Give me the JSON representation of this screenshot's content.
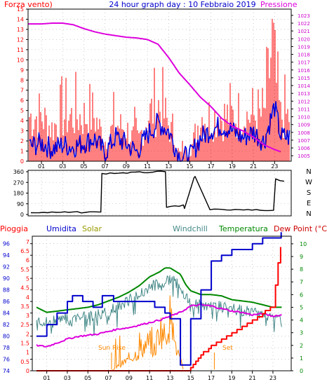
{
  "chart_data": [
    {
      "type": "line",
      "title": "24 hour graph day : 10 Febbraio 2019",
      "left_label": "Forza vento)",
      "right_label": "Pressione",
      "x_ticks": [
        "01",
        "03",
        "05",
        "07",
        "09",
        "11",
        "13",
        "15",
        "17",
        "19",
        "21",
        "23"
      ],
      "left_ticks": [
        "0",
        "1",
        "2",
        "3",
        "4",
        "5",
        "6",
        "7",
        "8",
        "9",
        "10",
        "11",
        "12",
        "13",
        "14",
        "15"
      ],
      "right_ticks": [
        "1005",
        "1006",
        "1007",
        "1008",
        "1009",
        "1010",
        "1011",
        "1012",
        "1013",
        "1014",
        "1015",
        "1016",
        "1017",
        "1018",
        "1019",
        "1020",
        "1021",
        "1022",
        "1023"
      ],
      "ylim_left": [
        0,
        15
      ],
      "ylim_right": [
        1004.3,
        1023.8
      ],
      "colors": {
        "gust": "#ff0000",
        "wind": "#0000dd",
        "pressure": "#dd00dd"
      },
      "series": [
        {
          "key": "pressure",
          "axis": "right",
          "x": [
            0,
            1,
            2,
            3,
            4,
            5,
            6,
            7,
            8,
            9,
            10,
            11,
            12,
            13,
            14,
            15,
            16,
            17,
            18,
            19,
            20,
            21,
            22,
            23,
            23.6
          ],
          "values": [
            1021.9,
            1021.9,
            1022,
            1022,
            1021.8,
            1021.3,
            1020.9,
            1020.6,
            1020.4,
            1020.2,
            1020.1,
            1019.9,
            1019.3,
            1017.6,
            1015.6,
            1014.1,
            1012.5,
            1011.3,
            1009.8,
            1008.8,
            1008.2,
            1007.4,
            1006.4,
            1005.8,
            1005.5
          ]
        },
        {
          "key": "wind",
          "axis": "left",
          "x": [
            0,
            1,
            2,
            3,
            4,
            5,
            6,
            7,
            8,
            9,
            10,
            11,
            12,
            13,
            14,
            15,
            16,
            17,
            18,
            19,
            20,
            21,
            22,
            23,
            23.6
          ],
          "values": [
            1.5,
            1.8,
            1.2,
            1.6,
            1.4,
            1.8,
            2.2,
            0.8,
            2.4,
            1.7,
            0.9,
            2.6,
            3.8,
            3,
            0.5,
            0.4,
            2.3,
            3.1,
            3.5,
            3,
            2.3,
            2.9,
            1.9,
            5.4,
            2.4
          ]
        },
        {
          "key": "gust",
          "axis": "left",
          "x": [
            0,
            1,
            2,
            3,
            4,
            5,
            6,
            7,
            8,
            9,
            10,
            11,
            12,
            13,
            14,
            15,
            16,
            17,
            18,
            19,
            20,
            21,
            22,
            22.8,
            23.3,
            23.6
          ],
          "values": [
            5.5,
            5.5,
            4,
            5.5,
            5.5,
            5.5,
            5.5,
            2.5,
            4.5,
            4,
            2,
            5.5,
            7,
            4.5,
            1,
            1,
            5.5,
            5.5,
            5.5,
            5.5,
            5.5,
            5.5,
            5.5,
            14.5,
            7.5,
            5.5
          ]
        }
      ]
    },
    {
      "type": "line",
      "y_ticks": [
        "0",
        "90",
        "180",
        "270",
        "360"
      ],
      "compass": [
        "N",
        "W",
        "S",
        "E",
        "N"
      ],
      "ylim": [
        0,
        360
      ],
      "color": "#000000",
      "series": [
        {
          "key": "direction",
          "x": [
            0,
            6.6,
            6.7,
            12.7,
            12.8,
            14.4,
            14.5,
            15.4,
            15.5,
            16.8,
            16.9,
            22.9,
            23.1,
            23.9
          ],
          "values": [
            15,
            20,
            345,
            360,
            60,
            80,
            50,
            310,
            320,
            60,
            40,
            35,
            300,
            280
          ]
        }
      ]
    },
    {
      "type": "line",
      "legend": [
        {
          "label": "Pioggia",
          "color": "#ff0000"
        },
        {
          "label": "Umidita",
          "color": "#0000cc"
        },
        {
          "label": "Solar",
          "color": "#999900"
        },
        {
          "label": "Windchill",
          "color": "#448888"
        },
        {
          "label": "Temperatura",
          "color": "#008800"
        },
        {
          "label": "Dew Point (°C)",
          "color": "#cc0000"
        }
      ],
      "humidity_ticks": [
        "74",
        "76",
        "78",
        "80",
        "82",
        "84",
        "86",
        "88",
        "90",
        "92",
        "94",
        "96"
      ],
      "rain_ticks": [
        "0",
        "0.5",
        "1",
        "1.5",
        "2",
        "2.5",
        "3",
        "3.5",
        "4",
        "4.5",
        "5",
        "5.5",
        "6",
        "6.5",
        "7"
      ],
      "temp_ticks": [
        "0",
        "1",
        "2",
        "3",
        "4",
        "5",
        "6",
        "7",
        "8",
        "9",
        "10"
      ],
      "annotations": [
        "Sun Rise",
        "Set"
      ],
      "ylim_humidity": [
        74,
        97.3
      ],
      "ylim_temp": [
        0,
        10.6
      ],
      "series": [
        {
          "key": "humidity",
          "axis": "humidity",
          "step": true,
          "x": [
            0,
            1,
            2,
            3,
            3.5,
            4.5,
            5.5,
            6.4,
            7.5,
            10.8,
            11.5,
            12.5,
            13,
            14,
            15,
            16,
            17,
            18,
            19,
            20,
            21,
            22,
            23,
            23.8
          ],
          "values": [
            80,
            82,
            84,
            86,
            87,
            86,
            85,
            87,
            86,
            86,
            85,
            84,
            83,
            75,
            83,
            88,
            93,
            94,
            95,
            95,
            96,
            97,
            97,
            98
          ]
        },
        {
          "key": "rain",
          "axis": "temp",
          "step": true,
          "x": [
            0,
            14.5,
            15,
            16,
            17,
            18,
            19,
            20,
            21,
            22,
            23,
            23.5,
            23.9
          ],
          "values": [
            0,
            0,
            0.2,
            1.2,
            1.9,
            2.4,
            2.9,
            3.4,
            3.9,
            4.5,
            5,
            8.5,
            10.4
          ]
        },
        {
          "key": "temperatura",
          "axis": "temp",
          "x": [
            0,
            1,
            2,
            3,
            4,
            5,
            6,
            7,
            8,
            9,
            10,
            11,
            12,
            12.5,
            13,
            14,
            14.5,
            15,
            16,
            17,
            18,
            19,
            20,
            21,
            22,
            23,
            23.9
          ],
          "values": [
            5,
            4.6,
            4.7,
            4.8,
            4.9,
            5,
            5.2,
            5.5,
            5.8,
            6.2,
            6.7,
            7.4,
            7.8,
            8.1,
            8.1,
            7.6,
            6.8,
            6.3,
            6,
            6,
            5.9,
            5.6,
            5.5,
            5.4,
            5.2,
            5,
            5
          ]
        },
        {
          "key": "windchill",
          "axis": "temp",
          "noisy": true,
          "x": [
            0,
            1,
            2,
            3,
            4,
            5,
            6,
            7,
            8,
            9,
            10,
            11,
            12,
            13,
            14,
            14.5,
            15,
            16,
            17,
            18,
            19,
            20,
            21,
            22,
            23,
            23.9
          ],
          "values": [
            4.3,
            4.3,
            4.5,
            4.6,
            4.7,
            4.8,
            4.9,
            5.1,
            5.5,
            6,
            6.5,
            7,
            7.4,
            7.6,
            7.2,
            6.2,
            5.8,
            5.6,
            5.5,
            5.5,
            5.3,
            5.2,
            5.1,
            5,
            4.7,
            4.6
          ]
        },
        {
          "key": "dewpoint",
          "axis": "temp",
          "x": [
            0,
            1,
            2,
            3,
            4,
            5,
            6,
            7,
            8,
            9,
            10,
            11,
            12,
            13,
            14,
            15,
            16,
            17,
            18,
            19,
            20,
            21,
            22,
            23,
            23.9
          ],
          "values": [
            2,
            1.9,
            2.2,
            2.5,
            2.7,
            2.8,
            2.9,
            3.1,
            3.3,
            3.4,
            3.6,
            3.8,
            4,
            4.3,
            4.6,
            5.1,
            5.2,
            5.1,
            4.9,
            4.7,
            4.6,
            4.4,
            4.5,
            4.3,
            4.4
          ]
        },
        {
          "key": "solar",
          "axis": "temp",
          "x": [
            7.3,
            8,
            9,
            10,
            11,
            11.5,
            12,
            12.5,
            13,
            13.5,
            14,
            14.3
          ],
          "values": [
            0,
            0.4,
            0.9,
            1.5,
            2.3,
            1.5,
            3.4,
            2.6,
            4.3,
            2,
            0.8,
            0
          ]
        }
      ]
    }
  ]
}
